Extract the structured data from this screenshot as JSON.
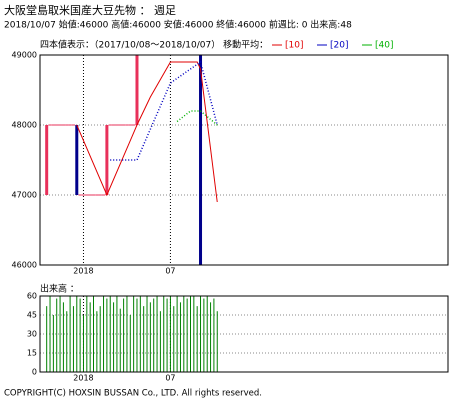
{
  "title": "大阪堂島取米国産大豆先物 ： 週足",
  "info": "2018/10/07 始値:46000 高値:46000 安値:46000 終値:46000 前週比: 0 出来高:48",
  "period": "四本値表示：（2017/10/08～2018/10/07） 移動平均：",
  "copyright": "COPYRIGHT(C) HOXSIN BUSSAN Co., LTD. All rights reserved.",
  "chart_data": [
    {
      "type": "candlestick",
      "xlim": [
        -1,
        121
      ],
      "xticks": [
        {
          "value": 12,
          "label": "2018"
        },
        {
          "value": 38,
          "label": "07"
        }
      ],
      "ylim": [
        46000,
        49000
      ],
      "yticks": [
        46000,
        47000,
        48000,
        49000
      ],
      "grid": true,
      "up_color": "#e8305a",
      "down_color": "#00008b",
      "candles": {
        "x": [
          1,
          2,
          3,
          4,
          5,
          6,
          7,
          8,
          9,
          10,
          11,
          12,
          13,
          14,
          15,
          16,
          17,
          18,
          19,
          20,
          21,
          22,
          23,
          24,
          25,
          26,
          27,
          28,
          29,
          30,
          31,
          32,
          33,
          34,
          35,
          36,
          37,
          38,
          39,
          40,
          41,
          42,
          43,
          44,
          45,
          46,
          47,
          48,
          49,
          50,
          51,
          52
        ],
        "open": [
          47000,
          48000,
          48000,
          48000,
          48000,
          48000,
          48000,
          48000,
          48000,
          48000,
          47000,
          47000,
          47000,
          47000,
          47000,
          47000,
          47000,
          47000,
          47000,
          48000,
          48000,
          48000,
          48000,
          48000,
          48000,
          48000,
          48000,
          48000,
          49000,
          49000,
          49000,
          49000,
          49000,
          49000,
          49000,
          49000,
          49000,
          49000,
          49000,
          49000,
          49000,
          49000,
          49000,
          49000,
          49000,
          49000,
          49000,
          46000,
          46000,
          46000,
          46000,
          46000
        ],
        "close": [
          48000,
          48000,
          48000,
          48000,
          48000,
          48000,
          48000,
          48000,
          48000,
          47000,
          47000,
          47000,
          47000,
          47000,
          47000,
          47000,
          47000,
          47000,
          48000,
          48000,
          48000,
          48000,
          48000,
          48000,
          48000,
          48000,
          48000,
          49000,
          49000,
          49000,
          49000,
          49000,
          49000,
          49000,
          49000,
          49000,
          49000,
          49000,
          49000,
          49000,
          49000,
          49000,
          49000,
          49000,
          49000,
          49000,
          46000,
          46000,
          46000,
          46000,
          46000,
          46000
        ]
      },
      "series": [
        {
          "name": "[10]",
          "color": "#e00000",
          "dash": false,
          "x": [
            10,
            19,
            28,
            32,
            38,
            46,
            47,
            52
          ],
          "values": [
            48000,
            47000,
            48000,
            48400,
            48900,
            48900,
            48800,
            46900
          ]
        },
        {
          "name": "[20]",
          "color": "#0000c0",
          "dash": true,
          "x": [
            20,
            28,
            38,
            47,
            52
          ],
          "values": [
            47500,
            47500,
            48600,
            48900,
            48000
          ]
        },
        {
          "name": "[40]",
          "color": "#00b000",
          "dash": true,
          "x": [
            40,
            44,
            47,
            52
          ],
          "values": [
            48050,
            48200,
            48200,
            48000
          ]
        }
      ]
    },
    {
      "type": "bar",
      "title": "出来高 ：",
      "color": "#008000",
      "xlim": [
        -1,
        121
      ],
      "xticks": [
        {
          "value": 12,
          "label": "2018"
        },
        {
          "value": 38,
          "label": "07"
        }
      ],
      "ylim": [
        0,
        60
      ],
      "yticks": [
        0,
        15,
        30,
        45,
        60
      ],
      "grid": true,
      "x": [
        1,
        2,
        3,
        4,
        5,
        6,
        7,
        8,
        9,
        10,
        11,
        12,
        13,
        14,
        15,
        16,
        17,
        18,
        19,
        20,
        21,
        22,
        23,
        24,
        25,
        26,
        27,
        28,
        29,
        30,
        31,
        32,
        33,
        34,
        35,
        36,
        37,
        38,
        39,
        40,
        41,
        42,
        43,
        44,
        45,
        46,
        47,
        48,
        49,
        50,
        51,
        52
      ],
      "values": [
        52,
        60,
        45,
        58,
        60,
        55,
        48,
        60,
        52,
        60,
        58,
        45,
        60,
        55,
        60,
        48,
        52,
        60,
        58,
        60,
        55,
        60,
        50,
        58,
        60,
        45,
        60,
        58,
        60,
        52,
        60,
        55,
        58,
        60,
        48,
        60,
        58,
        60,
        52,
        60,
        55,
        60,
        58,
        60,
        60,
        52,
        60,
        58,
        60,
        55,
        58,
        48
      ]
    }
  ]
}
